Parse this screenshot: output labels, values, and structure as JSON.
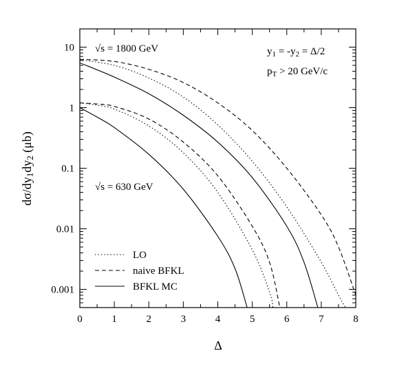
{
  "chart_data": {
    "type": "line",
    "xlabel": "Δ",
    "ylabel": "dσ/dy1dy2 (μb)",
    "xlim": [
      0,
      8
    ],
    "ylim": [
      0.0005,
      20
    ],
    "yscale": "log",
    "grid": false,
    "legend_position": "bottom-left",
    "x_ticks": [
      "0",
      "1",
      "2",
      "3",
      "4",
      "5",
      "6",
      "7",
      "8"
    ],
    "y_ticks": [
      {
        "value": 10,
        "label": "10"
      },
      {
        "value": 1,
        "label": "1"
      },
      {
        "value": 0.1,
        "label": "0.1"
      },
      {
        "value": 0.01,
        "label": "0.01"
      },
      {
        "value": 0.001,
        "label": "0.001"
      }
    ],
    "annotations": {
      "energy_high": "√s = 1800 GeV",
      "energy_low": "√s = 630 GeV",
      "rapidity_pre": "y",
      "rapidity_sub1": "1",
      "rapidity_mid": " = -y",
      "rapidity_sub2": "2",
      "rapidity_post": " = Δ/2",
      "pt_pre": "p",
      "pt_sub": "T",
      "pt_post": " > 20 GeV/c"
    },
    "ylabel_parts": {
      "a": "dσ/dy",
      "sub1": "1",
      "b": "dy",
      "sub2": "2",
      "c": " (μb)"
    },
    "legend": [
      "LO",
      "naive BFKL",
      "BFKL MC"
    ],
    "series": [
      {
        "name": "LO",
        "group": "√s = 1800 GeV",
        "style": "dotted",
        "x": [
          0,
          1,
          2,
          3,
          4,
          5,
          6,
          7,
          7.5,
          7.7
        ],
        "y": [
          6.2,
          5.0,
          3.1,
          1.5,
          0.52,
          0.13,
          0.023,
          0.0028,
          0.0008,
          0.0005
        ]
      },
      {
        "name": "naive BFKL",
        "group": "√s = 1800 GeV",
        "style": "dashed",
        "x": [
          0,
          1,
          2,
          3,
          4,
          5,
          6,
          7,
          7.5,
          8.0
        ],
        "y": [
          6.3,
          5.8,
          4.3,
          2.6,
          1.2,
          0.42,
          0.1,
          0.017,
          0.005,
          0.0008
        ]
      },
      {
        "name": "BFKL MC",
        "group": "√s = 1800 GeV",
        "style": "solid",
        "x": [
          0,
          1,
          2,
          3,
          4,
          5,
          6,
          6.5,
          6.9
        ],
        "y": [
          5.5,
          3.2,
          1.7,
          0.75,
          0.27,
          0.07,
          0.011,
          0.0028,
          0.0005
        ]
      },
      {
        "name": "LO",
        "group": "√s = 630 GeV",
        "style": "dotted",
        "x": [
          0,
          0.5,
          1,
          2,
          3,
          4,
          5,
          5.5,
          5.6
        ],
        "y": [
          1.2,
          1.1,
          0.95,
          0.5,
          0.18,
          0.04,
          0.0045,
          0.0009,
          0.0005
        ]
      },
      {
        "name": "naive BFKL",
        "group": "√s = 630 GeV",
        "style": "dashed",
        "x": [
          0,
          0.5,
          1,
          2,
          3,
          4,
          5,
          5.5,
          5.8
        ],
        "y": [
          1.2,
          1.15,
          1.05,
          0.65,
          0.27,
          0.075,
          0.011,
          0.0028,
          0.0005
        ]
      },
      {
        "name": "BFKL MC",
        "group": "√s = 630 GeV",
        "style": "solid",
        "x": [
          0,
          0.5,
          1,
          2,
          3,
          4,
          4.5,
          4.85
        ],
        "y": [
          1.0,
          0.7,
          0.47,
          0.17,
          0.045,
          0.0075,
          0.0022,
          0.0005
        ]
      }
    ]
  }
}
